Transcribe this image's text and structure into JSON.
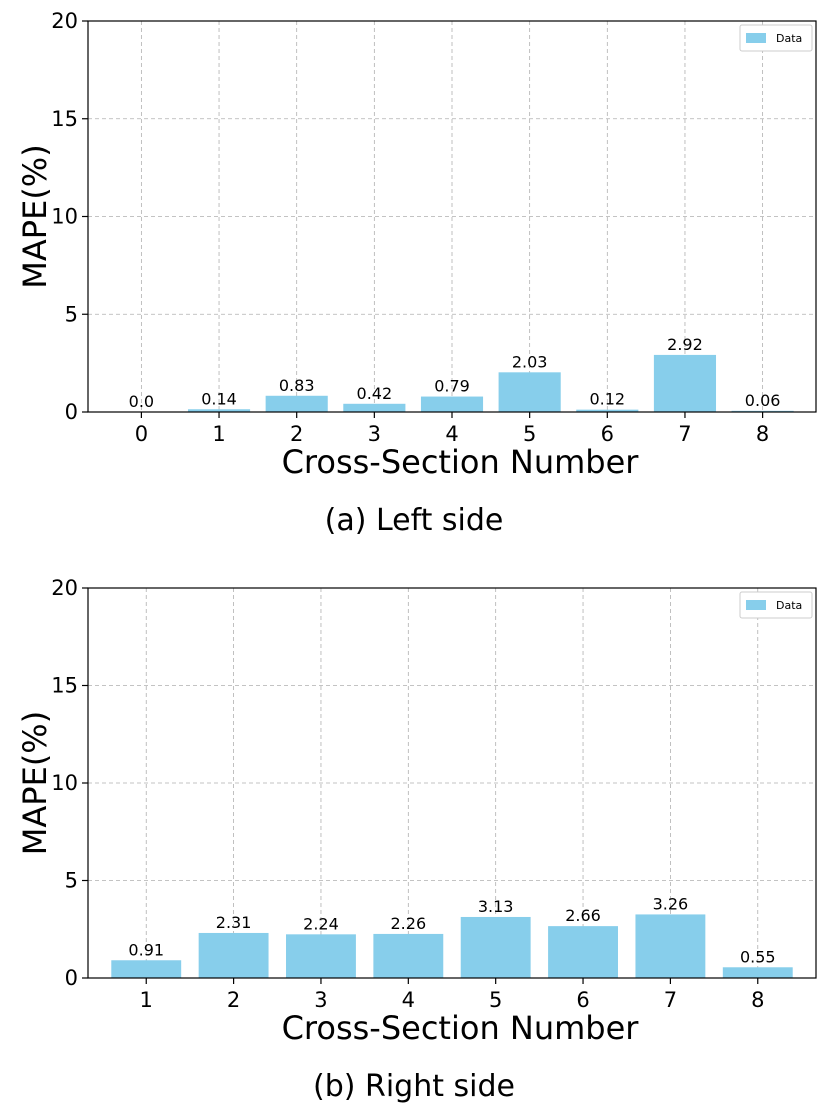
{
  "chart_data": [
    {
      "type": "bar",
      "caption": "(a) Left side",
      "xlabel": "Cross-Section Number",
      "ylabel": "MAPE(%)",
      "ylim": [
        0,
        20
      ],
      "yticks": [
        0,
        5,
        10,
        15,
        20
      ],
      "categories": [
        "0",
        "1",
        "2",
        "3",
        "4",
        "5",
        "6",
        "7",
        "8"
      ],
      "series": [
        {
          "name": "Data",
          "color": "#87ceeb",
          "values": [
            0.0,
            0.14,
            0.83,
            0.42,
            0.79,
            2.03,
            0.12,
            2.92,
            0.06
          ],
          "labels": [
            "0.0",
            "0.14",
            "0.83",
            "0.42",
            "0.79",
            "2.03",
            "0.12",
            "2.92",
            "0.06"
          ]
        }
      ],
      "grid": true,
      "legend": "top-right"
    },
    {
      "type": "bar",
      "caption": "(b) Right side",
      "xlabel": "Cross-Section Number",
      "ylabel": "MAPE(%)",
      "ylim": [
        0,
        20
      ],
      "yticks": [
        0,
        5,
        10,
        15,
        20
      ],
      "categories": [
        "1",
        "2",
        "3",
        "4",
        "5",
        "6",
        "7",
        "8"
      ],
      "series": [
        {
          "name": "Data",
          "color": "#87ceeb",
          "values": [
            0.91,
            2.31,
            2.24,
            2.26,
            3.13,
            2.66,
            3.26,
            0.55
          ],
          "labels": [
            "0.91",
            "2.31",
            "2.24",
            "2.26",
            "3.13",
            "2.66",
            "3.26",
            "0.55"
          ]
        }
      ],
      "grid": true,
      "legend": "top-right"
    }
  ]
}
